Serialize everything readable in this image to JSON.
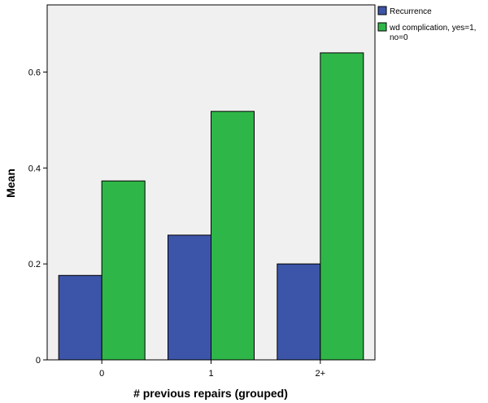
{
  "chart_data": {
    "type": "bar",
    "categories": [
      "0",
      "1",
      "2+"
    ],
    "series": [
      {
        "name": "Recurrence",
        "values": [
          0.176,
          0.26,
          0.2
        ],
        "color": "#3d55a8"
      },
      {
        "name": "wd complication, yes=1, no=0",
        "name_lines": [
          "wd complication, yes=1,",
          "no=0"
        ],
        "values": [
          0.373,
          0.518,
          0.64
        ],
        "color": "#2fb648"
      }
    ],
    "xlabel": "# previous repairs (grouped)",
    "ylabel": "Mean",
    "ylim": [
      0,
      0.74
    ],
    "yticks": [
      0,
      0.2,
      0.4,
      0.6
    ],
    "ytick_labels": [
      "0",
      "0.2",
      "0.4",
      "0.6"
    ],
    "grid": false,
    "legend": "top-right",
    "plot_background": "#f0f0f0"
  }
}
